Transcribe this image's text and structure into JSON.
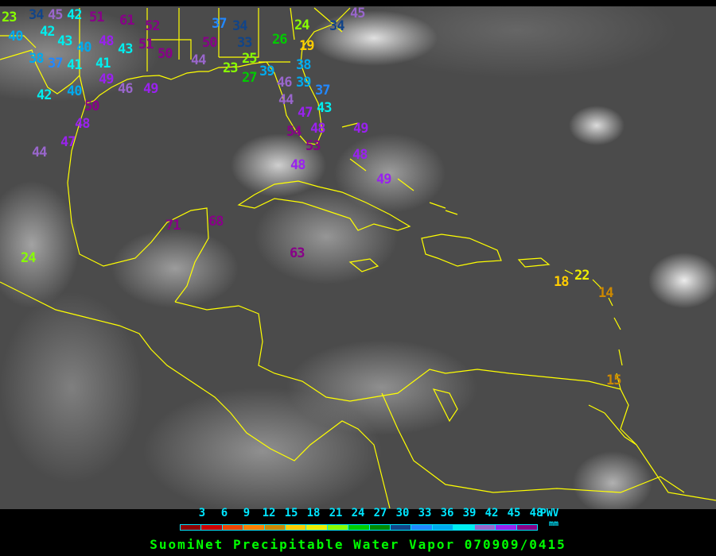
{
  "title": "SuomiNet Precipitable Water Vapor 070909/0415",
  "legend": {
    "unit_label": "PWV",
    "unit": "mm",
    "ticks": [
      "3",
      "6",
      "9",
      "12",
      "15",
      "18",
      "21",
      "24",
      "27",
      "30",
      "33",
      "36",
      "39",
      "42",
      "45",
      "48"
    ],
    "colors": [
      "#8b0000",
      "#cc0000",
      "#ee4400",
      "#ff8000",
      "#cc8800",
      "#ffcc00",
      "#eeee00",
      "#88ff00",
      "#00cc00",
      "#008800",
      "#114488",
      "#2288ff",
      "#00aaee",
      "#00eeee",
      "#9966cc",
      "#9922ee",
      "#880088"
    ]
  },
  "map": {
    "coastline_color": "#ffff00",
    "background": "infrared satellite imagery",
    "stations": [
      "23",
      "34",
      "45",
      "42",
      "40",
      "42",
      "43",
      "40",
      "38",
      "37",
      "41",
      "41",
      "51",
      "61",
      "52",
      "48",
      "43",
      "51",
      "50",
      "49",
      "46",
      "49",
      "40",
      "42",
      "50",
      "48",
      "47",
      "44",
      "50",
      "44",
      "23",
      "27",
      "39",
      "46",
      "34",
      "37",
      "33",
      "25",
      "24",
      "26",
      "19",
      "34",
      "38",
      "39",
      "37",
      "44",
      "47",
      "43",
      "48",
      "54",
      "53",
      "49",
      "48",
      "49",
      "48",
      "71",
      "68",
      "63",
      "24",
      "18",
      "22",
      "14",
      "15",
      "45"
    ]
  }
}
